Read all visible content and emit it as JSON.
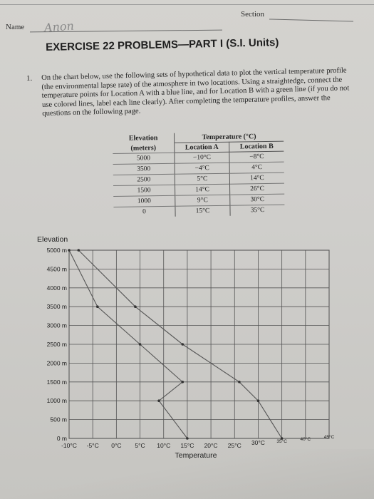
{
  "header": {
    "name_label": "Name",
    "name_value": "Anon",
    "section_label": "Section"
  },
  "title": "EXERCISE 22 PROBLEMS—PART I (S.I. Units)",
  "question": {
    "number": "1.",
    "text": "On the chart below, use the following sets of hypothetical data to plot the vertical temperature profile (the environmental lapse rate) of the atmosphere in two locations. Using a straightedge, connect the temperature points for Location A with a blue line, and for Location B with a green line (if you do not use colored lines, label each line clearly). After completing the temperature profiles, answer the questions on the following page."
  },
  "table": {
    "elevation_header": "Elevation",
    "elevation_unit": "(meters)",
    "temperature_header": "Temperature (°C)",
    "location_a_header": "Location A",
    "location_b_header": "Location B",
    "rows": [
      {
        "elevation": "5000",
        "a": "−10°C",
        "b": "−8°C"
      },
      {
        "elevation": "3500",
        "a": "−4°C",
        "b": "4°C"
      },
      {
        "elevation": "2500",
        "a": "5°C",
        "b": "14°C"
      },
      {
        "elevation": "1500",
        "a": "14°C",
        "b": "26°C"
      },
      {
        "elevation": "1000",
        "a": "9°C",
        "b": "30°C"
      },
      {
        "elevation": "0",
        "a": "15°C",
        "b": "35°C"
      }
    ]
  },
  "chart_data": {
    "type": "line",
    "ylabel": "Elevation",
    "xlabel": "Temperature",
    "y_ticks": [
      "5000 m",
      "4500 m",
      "4000 m",
      "3500 m",
      "3000 m",
      "2500 m",
      "2000 m",
      "1500 m",
      "1000 m",
      "500 m",
      "0 m"
    ],
    "y_tick_values": [
      5000,
      4500,
      4000,
      3500,
      3000,
      2500,
      2000,
      1500,
      1000,
      500,
      0
    ],
    "x_ticks": [
      "-10°C",
      "-5°C",
      "0°C",
      "5°C",
      "10°C",
      "15°C",
      "20°C",
      "25°C",
      "30°C",
      "35°C",
      "40°C",
      "45°C"
    ],
    "x_tick_values": [
      -10,
      -5,
      0,
      5,
      10,
      15,
      20,
      25,
      30,
      35,
      40,
      45
    ],
    "xlim": [
      -10,
      45
    ],
    "ylim": [
      0,
      5000
    ],
    "grid": true,
    "series": [
      {
        "elevation": [
          5000,
          3500,
          2500,
          1500,
          1000,
          0
        ],
        "temperature": [
          -10,
          -4,
          5,
          14,
          9,
          15
        ],
        "color": "#555555"
      },
      {
        "elevation": [
          5000,
          3500,
          2500,
          1500,
          1000,
          0
        ],
        "temperature": [
          -8,
          4,
          14,
          26,
          30,
          35
        ],
        "color": "#555555"
      }
    ]
  }
}
